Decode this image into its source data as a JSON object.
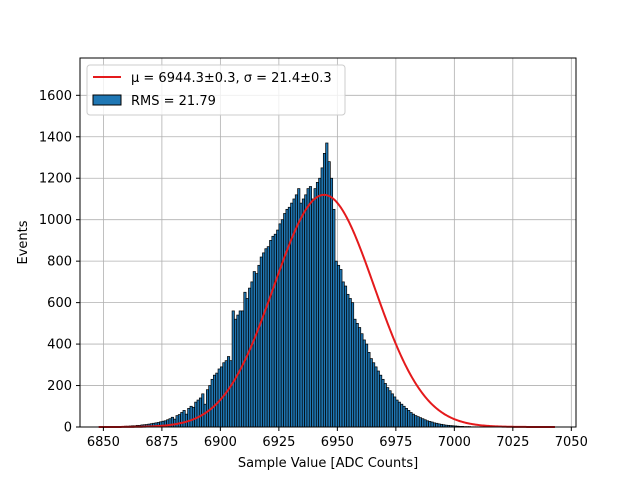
{
  "chart_data": {
    "type": "bar",
    "title": "",
    "xlabel": "Sample Value [ADC Counts]",
    "ylabel": "Events",
    "xlim": [
      6840,
      6052
    ],
    "ylim": [
      0,
      1780
    ],
    "xticks": [
      6850,
      6875,
      6900,
      6925,
      6950,
      6975,
      7000,
      7025,
      7050
    ],
    "yticks": [
      0,
      200,
      400,
      600,
      800,
      1000,
      1200,
      1400,
      1600
    ],
    "grid": true,
    "legend_position": "top-left",
    "bin_width": 1,
    "bins_start": 6848,
    "series": [
      {
        "name": "RMS = 21.79",
        "kind": "histogram",
        "color": "#1f77b4",
        "edgecolor": "#000000",
        "values": [
          1,
          0,
          1,
          2,
          1,
          2,
          1,
          3,
          2,
          3,
          3,
          4,
          4,
          5,
          6,
          6,
          8,
          8,
          10,
          11,
          12,
          14,
          16,
          18,
          20,
          22,
          25,
          28,
          30,
          35,
          40,
          47,
          38,
          55,
          60,
          70,
          80,
          62,
          90,
          100,
          95,
          120,
          130,
          140,
          160,
          110,
          180,
          200,
          230,
          250,
          260,
          280,
          290,
          310,
          320,
          340,
          320,
          560,
          520,
          540,
          560,
          560,
          650,
          620,
          670,
          700,
          750,
          740,
          780,
          820,
          840,
          860,
          870,
          900,
          920,
          930,
          950,
          980,
          1000,
          1030,
          1050,
          1060,
          1080,
          1100,
          1120,
          1150,
          1080,
          1100,
          1120,
          1150,
          1160,
          1100,
          1150,
          1180,
          1200,
          1250,
          1320,
          1370,
          1280,
          1200,
          1050,
          800,
          780,
          760,
          700,
          680,
          640,
          620,
          600,
          520,
          500,
          480,
          450,
          420,
          400,
          360,
          330,
          310,
          290,
          270,
          250,
          230,
          210,
          190,
          175,
          160,
          145,
          130,
          120,
          110,
          100,
          90,
          80,
          70,
          62,
          55,
          50,
          45,
          40,
          35,
          30,
          27,
          24,
          20,
          18,
          15,
          13,
          11,
          9,
          8,
          7,
          6,
          5,
          4,
          3,
          3,
          2,
          2,
          2,
          1,
          1,
          1,
          1,
          0,
          1,
          0,
          0,
          1,
          0,
          0,
          0,
          0,
          0,
          0,
          0,
          0,
          0,
          0,
          0,
          0,
          0,
          0,
          0,
          0,
          0,
          0,
          0
        ]
      },
      {
        "name": "μ = 6944.3±0.3, σ = 21.4±0.3",
        "kind": "gaussian-fit",
        "color": "#e41a1c",
        "mu": 6944.3,
        "sigma": 21.4,
        "amplitude": 1120,
        "x_range": [
          6848,
          7043
        ]
      }
    ],
    "legend": {
      "fit_label": "μ = 6944.3±0.3, σ = 21.4±0.3",
      "hist_label": "RMS = 21.79"
    }
  }
}
